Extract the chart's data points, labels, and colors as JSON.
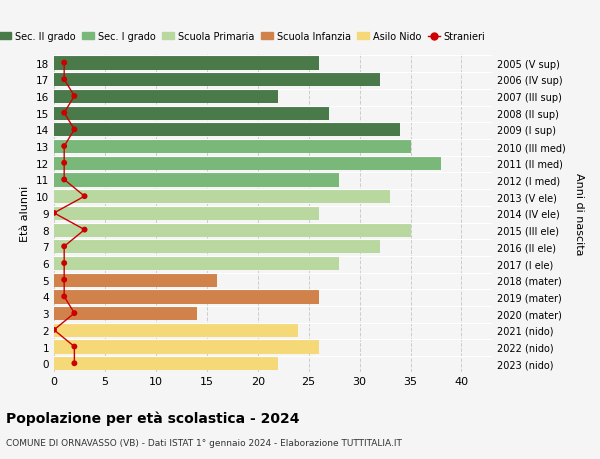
{
  "ages": [
    18,
    17,
    16,
    15,
    14,
    13,
    12,
    11,
    10,
    9,
    8,
    7,
    6,
    5,
    4,
    3,
    2,
    1,
    0
  ],
  "right_labels": [
    "2005 (V sup)",
    "2006 (IV sup)",
    "2007 (III sup)",
    "2008 (II sup)",
    "2009 (I sup)",
    "2010 (III med)",
    "2011 (II med)",
    "2012 (I med)",
    "2013 (V ele)",
    "2014 (IV ele)",
    "2015 (III ele)",
    "2016 (II ele)",
    "2017 (I ele)",
    "2018 (mater)",
    "2019 (mater)",
    "2020 (mater)",
    "2021 (nido)",
    "2022 (nido)",
    "2023 (nido)"
  ],
  "bar_values": [
    26,
    32,
    22,
    27,
    34,
    35,
    38,
    28,
    33,
    26,
    35,
    32,
    28,
    16,
    26,
    14,
    24,
    26,
    22
  ],
  "bar_colors": [
    "#4a7a4a",
    "#4a7a4a",
    "#4a7a4a",
    "#4a7a4a",
    "#4a7a4a",
    "#7ab87a",
    "#7ab87a",
    "#7ab87a",
    "#b8d8a0",
    "#b8d8a0",
    "#b8d8a0",
    "#b8d8a0",
    "#b8d8a0",
    "#d0824a",
    "#d0824a",
    "#d0824a",
    "#f5d878",
    "#f5d878",
    "#f5d878"
  ],
  "stranieri_values": [
    1,
    1,
    2,
    1,
    2,
    1,
    1,
    1,
    3,
    0,
    3,
    1,
    1,
    1,
    1,
    2,
    0,
    2,
    2
  ],
  "stranieri_color": "#cc0000",
  "legend_items": [
    {
      "label": "Sec. II grado",
      "color": "#4a7a4a"
    },
    {
      "label": "Sec. I grado",
      "color": "#7ab87a"
    },
    {
      "label": "Scuola Primaria",
      "color": "#b8d8a0"
    },
    {
      "label": "Scuola Infanzia",
      "color": "#d0824a"
    },
    {
      "label": "Asilo Nido",
      "color": "#f5d878"
    },
    {
      "label": "Stranieri",
      "color": "#cc0000"
    }
  ],
  "ylabel_left": "Età alunni",
  "ylabel_right": "Anni di nascita",
  "xlim": [
    0,
    43
  ],
  "xticks": [
    0,
    5,
    10,
    15,
    20,
    25,
    30,
    35,
    40
  ],
  "title": "Popolazione per età scolastica - 2024",
  "subtitle": "COMUNE DI ORNAVASSO (VB) - Dati ISTAT 1° gennaio 2024 - Elaborazione TUTTITALIA.IT",
  "bg_color": "#f5f5f5"
}
